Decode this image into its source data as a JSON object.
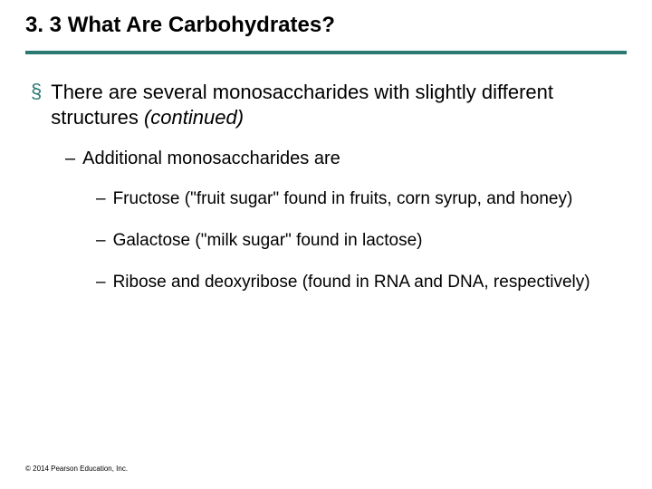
{
  "slide": {
    "title": "3. 3 What Are Carbohydrates?",
    "divider_color": "#2a7a72",
    "main_bullet": {
      "mark": "§",
      "text_prefix": "There are several monosaccharides with slightly different structures ",
      "text_italic": "(continued)"
    },
    "sub_bullet": {
      "mark": "–",
      "text": "Additional monosaccharides are"
    },
    "subsub_bullets": [
      {
        "mark": "–",
        "text": "Fructose (\"fruit sugar\" found in fruits, corn syrup, and honey)"
      },
      {
        "mark": "–",
        "text": "Galactose (\"milk sugar\" found in lactose)"
      },
      {
        "mark": "–",
        "text": "Ribose and deoxyribose (found in RNA and DNA, respectively)"
      }
    ],
    "footer": "© 2014 Pearson Education, Inc."
  }
}
